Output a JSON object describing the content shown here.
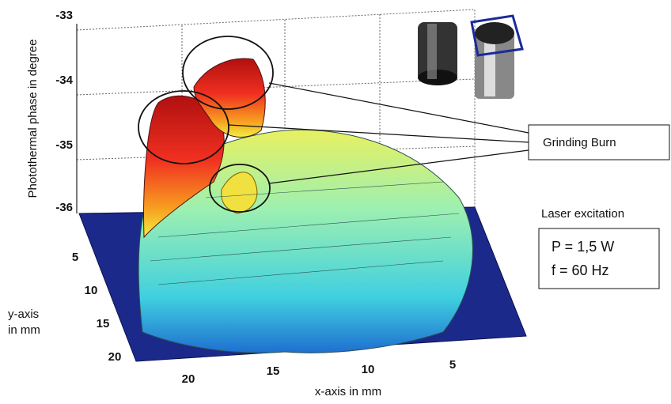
{
  "figure": {
    "z_axis": {
      "label": "Photothermal phase in degree",
      "ticks": [
        "-33",
        "-34",
        "-35",
        "-36"
      ]
    },
    "y_axis": {
      "label": [
        "y-axis",
        "in mm"
      ],
      "ticks": [
        "5",
        "10",
        "15",
        "20"
      ]
    },
    "x_axis": {
      "label": "x-axis in mm",
      "ticks": [
        "20",
        "15",
        "10",
        "5"
      ]
    },
    "annotation": "Grinding Burn",
    "excitation": {
      "title": "Laser excitation",
      "lines": [
        "P = 1,5 W",
        "f = 60 Hz"
      ]
    }
  }
}
